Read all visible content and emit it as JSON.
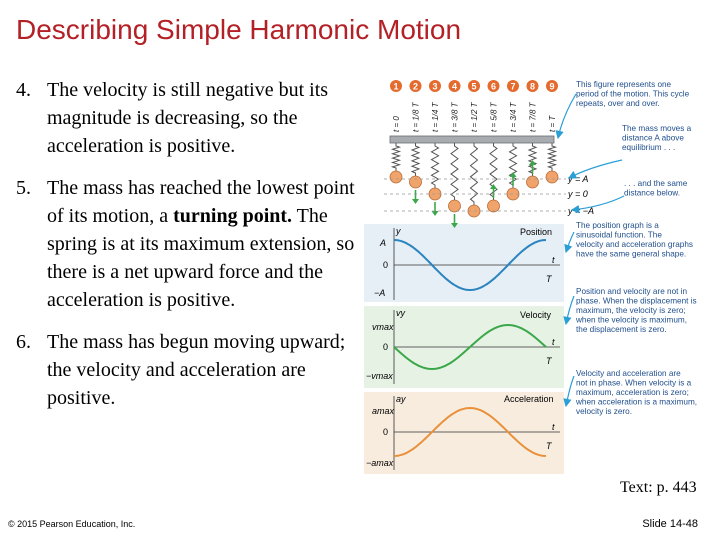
{
  "slide": {
    "title": "Describing Simple Harmonic Motion",
    "text_reference": "Text: p. 443",
    "copyright": "© 2015 Pearson Education, Inc.",
    "slide_number": "Slide 14-48"
  },
  "items": [
    {
      "number": "4.",
      "text": "The velocity is still negative but its magnitude is decreasing, so the acceleration is positive."
    },
    {
      "number": "5.",
      "text_before": "The mass has reached the lowest point of its motion, a ",
      "bold": "turning point.",
      "text_after": " The spring is at its maximum extension, so there is a net upward force and the acceleration is positive."
    },
    {
      "number": "6.",
      "text": "The mass has begun moving upward; the velocity and acceleration are positive."
    }
  ],
  "figure": {
    "frame_numbers": [
      "1",
      "2",
      "3",
      "4",
      "5",
      "6",
      "7",
      "8",
      "9"
    ],
    "time_labels": [
      "t = 0",
      "t = 1/8 T",
      "t = 1/4 T",
      "t = 3/8 T",
      "t = 1/2 T",
      "t = 5/8 T",
      "t = 3/4 T",
      "t = 7/8 T",
      "t = T"
    ],
    "position_labels": [
      "y = A",
      "y = 0",
      "y = −A"
    ],
    "graphs": {
      "position": {
        "name": "Position",
        "y_axis": "y",
        "ticks": [
          "A",
          "0",
          "−A"
        ],
        "x_axis": "t",
        "period": "T"
      },
      "velocity": {
        "name": "Velocity",
        "y_axis": "vy",
        "ticks": [
          "vmax",
          "0",
          "−vmax"
        ],
        "x_axis": "t",
        "period": "T"
      },
      "acceleration": {
        "name": "Acceleration",
        "y_axis": "ay",
        "ticks": [
          "amax",
          "0",
          "−amax"
        ],
        "x_axis": "t",
        "period": "T"
      }
    },
    "annotations": [
      "This figure represents one period of the motion. This cycle repeats, over and over.",
      "The mass moves a distance A above equilibrium . . .",
      ". . . and the same distance below.",
      "The position graph is a sinusoidal function. The velocity and acceleration graphs have the same general shape.",
      "Position and velocity are not in phase. When the displacement is maximum, the velocity is zero; when the velocity is maximum, the displacement is zero.",
      "Velocity and acceleration are not in phase. When velocity is a maximum, acceleration is zero; when acceleration is a maximum, velocity is zero."
    ],
    "colors": {
      "position": "#2a84c0",
      "velocity": "#3aa84a",
      "acceleration": "#e8913a",
      "badge": "#e46a2e",
      "arrow": "#2a9fd6",
      "title": "#b32025"
    }
  }
}
